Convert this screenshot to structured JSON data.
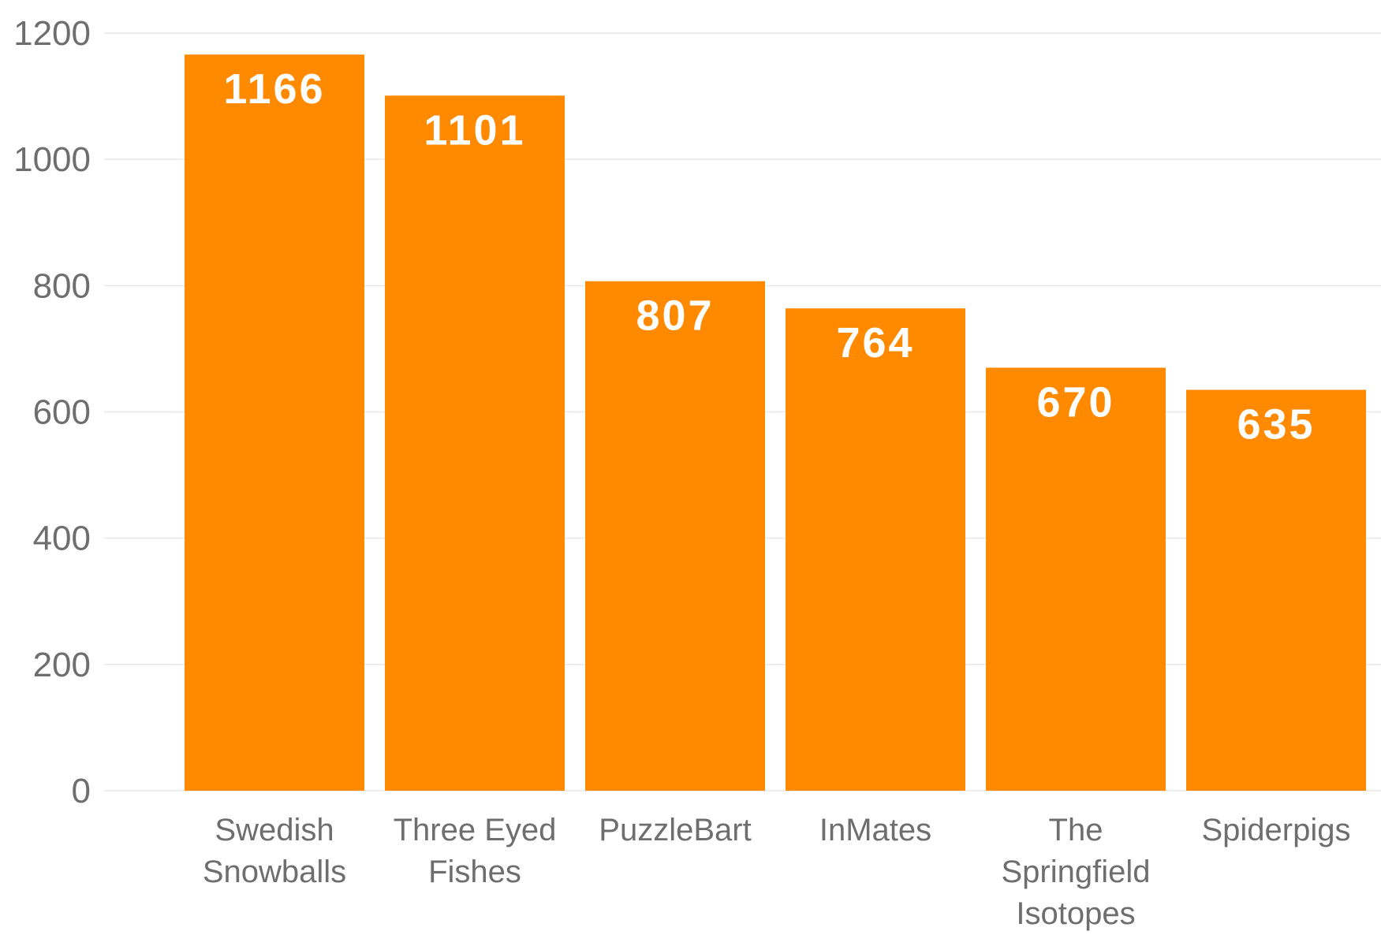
{
  "chart_data": {
    "type": "bar",
    "categories": [
      [
        "Swedish",
        "Snowballs"
      ],
      [
        "Three Eyed",
        "Fishes"
      ],
      [
        "PuzzleBart"
      ],
      [
        "InMates"
      ],
      [
        "The",
        "Springfield",
        "Isotopes"
      ],
      [
        "Spiderpigs"
      ]
    ],
    "values": [
      1166,
      1101,
      807,
      764,
      670,
      635
    ],
    "data_labels": [
      "1166",
      "1101",
      "807",
      "764",
      "670",
      "635"
    ],
    "yticks": [
      0,
      200,
      400,
      600,
      800,
      1000,
      1200
    ],
    "ytick_labels": [
      "0",
      "200",
      "400",
      "600",
      "800",
      "1000",
      "1200"
    ],
    "ylim": [
      0,
      1200
    ],
    "grid": true,
    "legend": "none",
    "bar_color": "#FF8A00",
    "gridline_color": "#E8E8E8",
    "axis_text_color": "#6E6E6E",
    "data_label_color": "#FFFFFF"
  }
}
